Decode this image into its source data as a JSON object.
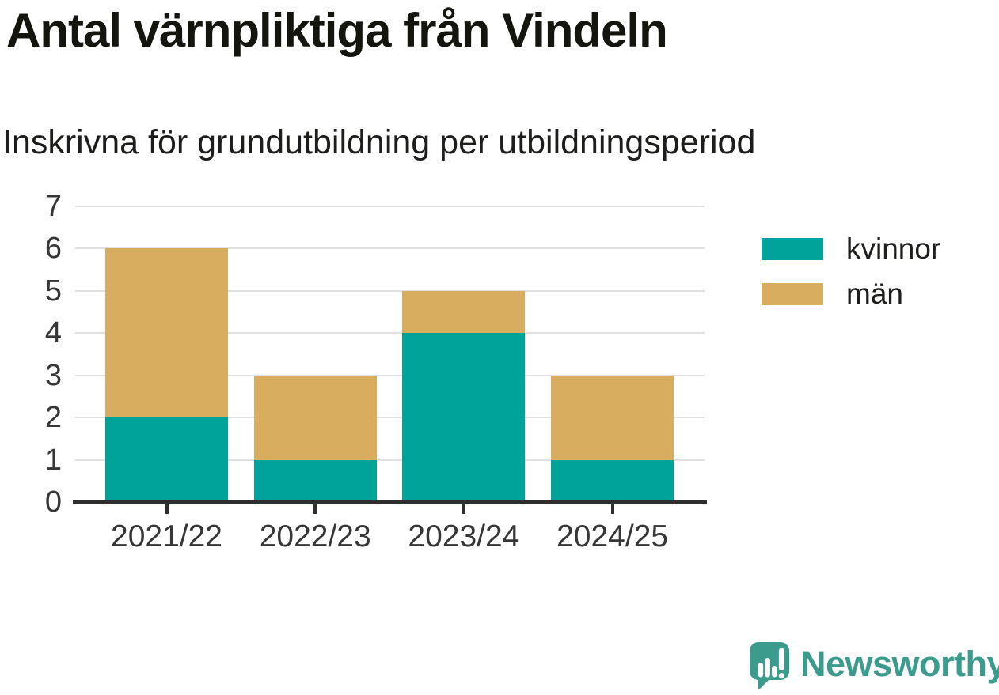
{
  "title": "Antal värnpliktiga från Vindeln",
  "subtitle": "Inskrivna för grundutbildning per utbildningsperiod",
  "footer": {
    "brand": "Newsworthy"
  },
  "colors": {
    "kvinnor": "#00a39a",
    "man": "#d9ad5f",
    "brand_teal": "#3b9c8d",
    "grid": "#e1e1e1",
    "axis": "#2e2e2e",
    "title_text": "#15150f",
    "label_text": "#363636"
  },
  "legend": {
    "items": [
      {
        "label": "kvinnor",
        "color": "#00a39a"
      },
      {
        "label": "män",
        "color": "#d9ad5f"
      }
    ]
  },
  "chart_data": {
    "type": "bar",
    "stacked": true,
    "title": "Antal värnpliktiga från Vindeln",
    "subtitle": "Inskrivna för grundutbildning per utbildningsperiod",
    "categories": [
      "2021/22",
      "2022/23",
      "2023/24",
      "2024/25"
    ],
    "series": [
      {
        "name": "kvinnor",
        "color": "#00a39a",
        "values": [
          2,
          1,
          4,
          1
        ]
      },
      {
        "name": "män",
        "color": "#d9ad5f",
        "values": [
          4,
          2,
          1,
          2
        ]
      }
    ],
    "totals": [
      6,
      3,
      5,
      3
    ],
    "xlabel": "",
    "ylabel": "",
    "ylim": [
      0,
      7
    ],
    "yticks": [
      0,
      1,
      2,
      3,
      4,
      5,
      6,
      7
    ],
    "grid": true,
    "legend_position": "right"
  }
}
